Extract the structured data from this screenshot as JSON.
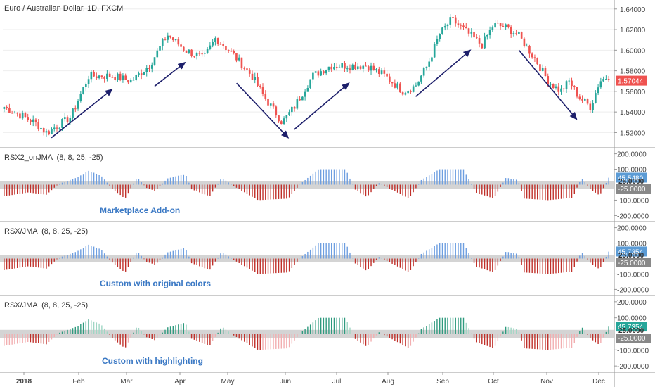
{
  "chart_data": [
    {
      "type": "candlestick",
      "title": "Euro / Australian Dollar, 1D, FXCM",
      "y_ticks": [
        "1.64000",
        "1.62000",
        "1.60000",
        "1.58000",
        "1.56000",
        "1.54000",
        "1.52000"
      ],
      "y_tick_values": [
        1.64,
        1.62,
        1.6,
        1.58,
        1.56,
        1.54,
        1.52
      ],
      "ylim": [
        1.508,
        1.646
      ],
      "last_price": "1.57044",
      "last_price_value": 1.57044,
      "x_ticks": [
        "2018",
        "Feb",
        "Mar",
        "Apr",
        "May",
        "Jun",
        "Jul",
        "Aug",
        "Sep",
        "Oct",
        "Nov",
        "Dec"
      ],
      "trend_arrows": [
        {
          "from": [
            0.08,
            1.515
          ],
          "to": [
            0.18,
            1.562
          ]
        },
        {
          "from": [
            0.25,
            1.565
          ],
          "to": [
            0.3,
            1.588
          ]
        },
        {
          "from": [
            0.385,
            1.568
          ],
          "to": [
            0.47,
            1.515
          ]
        },
        {
          "from": [
            0.48,
            1.523
          ],
          "to": [
            0.57,
            1.568
          ]
        },
        {
          "from": [
            0.68,
            1.555
          ],
          "to": [
            0.77,
            1.6
          ]
        },
        {
          "from": [
            0.85,
            1.6
          ],
          "to": [
            0.945,
            1.533
          ]
        }
      ],
      "anchors": [
        [
          0,
          1.545
        ],
        [
          0.05,
          1.53
        ],
        [
          0.07,
          1.52
        ],
        [
          0.11,
          1.535
        ],
        [
          0.14,
          1.575
        ],
        [
          0.18,
          1.575
        ],
        [
          0.21,
          1.57
        ],
        [
          0.24,
          1.585
        ],
        [
          0.27,
          1.615
        ],
        [
          0.3,
          1.6
        ],
        [
          0.33,
          1.592
        ],
        [
          0.35,
          1.612
        ],
        [
          0.38,
          1.595
        ],
        [
          0.41,
          1.575
        ],
        [
          0.43,
          1.555
        ],
        [
          0.46,
          1.53
        ],
        [
          0.48,
          1.545
        ],
        [
          0.51,
          1.575
        ],
        [
          0.54,
          1.585
        ],
        [
          0.57,
          1.585
        ],
        [
          0.6,
          1.585
        ],
        [
          0.63,
          1.575
        ],
        [
          0.66,
          1.56
        ],
        [
          0.68,
          1.565
        ],
        [
          0.7,
          1.585
        ],
        [
          0.72,
          1.615
        ],
        [
          0.74,
          1.63
        ],
        [
          0.77,
          1.615
        ],
        [
          0.79,
          1.605
        ],
        [
          0.81,
          1.625
        ],
        [
          0.83,
          1.622
        ],
        [
          0.85,
          1.615
        ],
        [
          0.88,
          1.59
        ],
        [
          0.9,
          1.57
        ],
        [
          0.92,
          1.56
        ],
        [
          0.935,
          1.57
        ],
        [
          0.95,
          1.555
        ],
        [
          0.97,
          1.545
        ],
        [
          0.985,
          1.57
        ],
        [
          1.0,
          1.575
        ]
      ]
    },
    {
      "type": "bar",
      "name": "RSX2_onJMA",
      "params": "(8, 8, 25, -25)",
      "caption": "Marketplace Add-on",
      "scheme": "original",
      "y_ticks": [
        "200.0000",
        "100.0000",
        "-100.0000",
        "-200.0000"
      ],
      "y_tick_values": [
        200,
        100,
        -100,
        -200
      ],
      "level_up": "25.0000",
      "level_dn": "-25.0000",
      "level_values": [
        25,
        -25
      ],
      "last_value": "45.5480",
      "last_value_num": 45.548,
      "ylim": [
        -230,
        230
      ]
    },
    {
      "type": "bar",
      "name": "RSX/JMA",
      "params": "(8, 8, 25, -25)",
      "caption": "Custom with original colors",
      "scheme": "original",
      "y_ticks": [
        "200.0000",
        "100.0000",
        "-100.0000",
        "-200.0000"
      ],
      "y_tick_values": [
        200,
        100,
        -100,
        -200
      ],
      "level_up": "25.0000",
      "level_dn": "-25.0000",
      "level_values": [
        25,
        -25
      ],
      "last_value": "45.7354",
      "last_value_num": 45.7354,
      "ylim": [
        -230,
        230
      ]
    },
    {
      "type": "bar",
      "name": "RSX/JMA",
      "params": "(8, 8, 25, -25)",
      "caption": "Custom with highlighting",
      "scheme": "highlight",
      "y_ticks": [
        "200.0000",
        "100.0000",
        "-100.0000",
        "-200.0000"
      ],
      "y_tick_values": [
        200,
        100,
        -100,
        -200
      ],
      "level_up": "25.0000",
      "level_dn": "-25.0000",
      "level_values": [
        25,
        -25
      ],
      "last_value": "45.7354",
      "last_value_num": 45.7354,
      "ylim": [
        -230,
        230
      ]
    }
  ],
  "colors": {
    "up": "#26a69a",
    "down": "#ef5350",
    "osc_blue": "#6d9ee0",
    "osc_red": "#c0302a",
    "osc_green": "#2e9a7e",
    "osc_green_light": "#9fd6c4",
    "osc_red_light": "#f2aeb0",
    "level_band": "#c9c9c9",
    "arrow": "#1d1f6b",
    "price_tag": "#ef5350",
    "val_tag_blue": "#5b9bd5",
    "val_tag_green": "#26a69a",
    "level_tag": "#888888"
  }
}
